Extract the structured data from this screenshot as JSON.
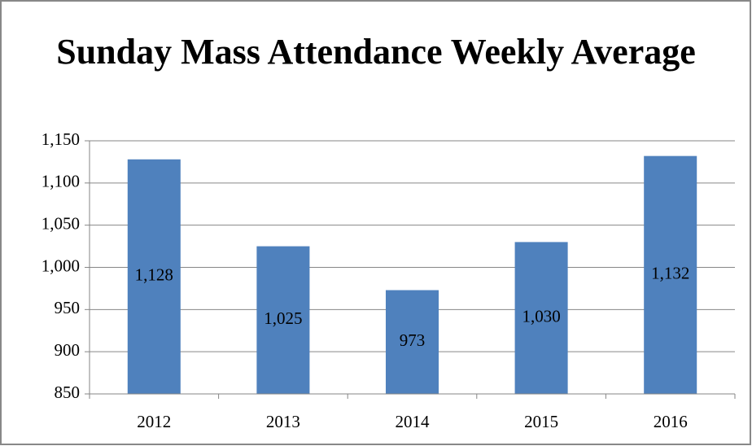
{
  "chart_data": {
    "type": "bar",
    "title": "Sunday Mass Attendance Weekly Average",
    "categories": [
      "2012",
      "2013",
      "2014",
      "2015",
      "2016"
    ],
    "values": [
      1128,
      1025,
      973,
      1030,
      1132
    ],
    "value_labels": [
      "1,128",
      "1,025",
      "973",
      "1,030",
      "1,132"
    ],
    "color": "#4f81bd",
    "ylim": [
      850,
      1150
    ],
    "yticks": [
      850,
      900,
      950,
      {
        "value": 1000,
        "label": "1,000"
      },
      {
        "value": 1050,
        "label": "1,050"
      },
      {
        "value": 1100,
        "label": "1,100"
      },
      {
        "value": 1150,
        "label": "1,150"
      }
    ],
    "grid": true
  }
}
